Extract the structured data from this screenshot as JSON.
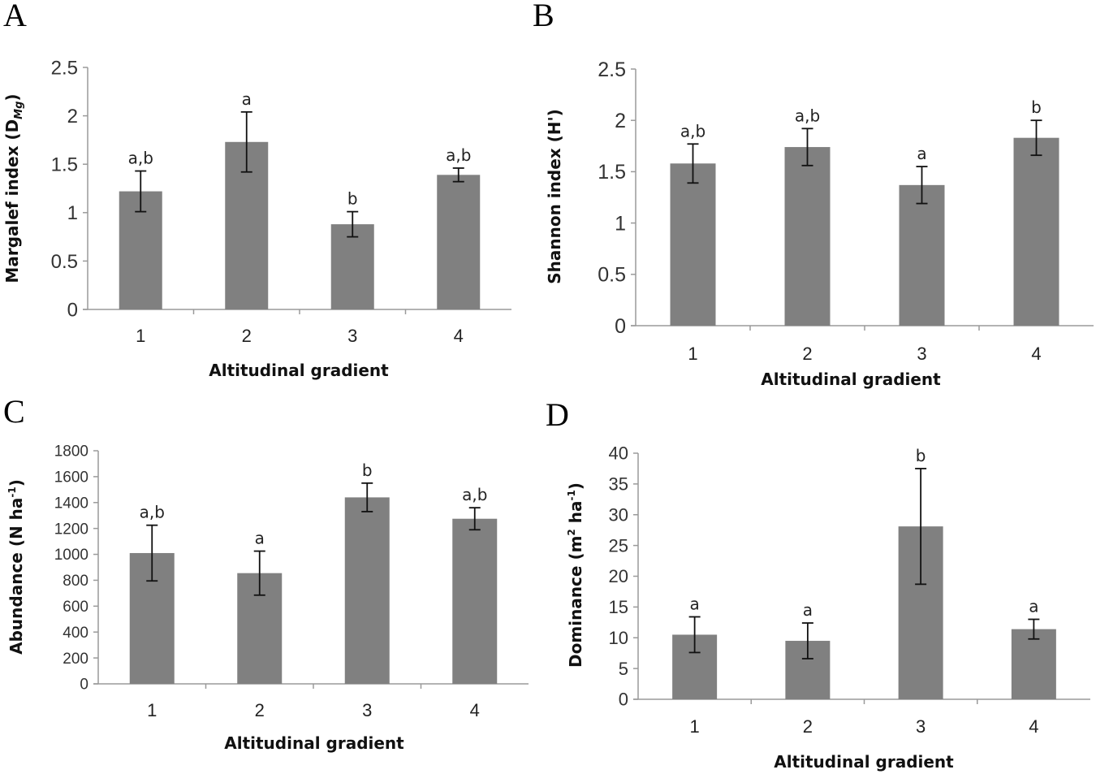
{
  "chart_data": [
    {
      "panel": "A",
      "type": "bar",
      "xlabel": "Altitudinal gradient",
      "ylabel": "Margalef index (D",
      "ylabel_sub": "Mg",
      "ylabel_end": ")",
      "categories": [
        "1",
        "2",
        "3",
        "4"
      ],
      "values": [
        1.22,
        1.73,
        0.88,
        1.39
      ],
      "errors": [
        0.21,
        0.31,
        0.13,
        0.07
      ],
      "significance": [
        "a,b",
        "a",
        "b",
        "a,b"
      ],
      "ylim": [
        0,
        2.5
      ],
      "yticks": [
        "0",
        "0.5",
        "1",
        "1.5",
        "2",
        "2.5"
      ]
    },
    {
      "panel": "B",
      "type": "bar",
      "xlabel": "Altitudinal gradient",
      "ylabel": "Shannon index (H')",
      "categories": [
        "1",
        "2",
        "3",
        "4"
      ],
      "values": [
        1.58,
        1.74,
        1.37,
        1.83
      ],
      "errors": [
        0.19,
        0.18,
        0.18,
        0.17
      ],
      "significance": [
        "a,b",
        "a,b",
        "a",
        "b"
      ],
      "ylim": [
        0,
        2.5
      ],
      "yticks": [
        "0",
        "0.5",
        "1",
        "1.5",
        "2",
        "2.5"
      ]
    },
    {
      "panel": "C",
      "type": "bar",
      "xlabel": "Altitudinal gradient",
      "ylabel": "Abundance (N ha",
      "ylabel_sup": "-1",
      "ylabel_end": ")",
      "categories": [
        "1",
        "2",
        "3",
        "4"
      ],
      "values": [
        1010,
        855,
        1440,
        1275
      ],
      "errors": [
        215,
        170,
        110,
        85
      ],
      "significance": [
        "a,b",
        "a",
        "b",
        "a,b"
      ],
      "ylim": [
        0,
        1800
      ],
      "yticks": [
        "0",
        "200",
        "400",
        "600",
        "800",
        "1000",
        "1200",
        "1400",
        "1600",
        "1800"
      ]
    },
    {
      "panel": "D",
      "type": "bar",
      "xlabel": "Altitudinal gradient",
      "ylabel": "Dominance (m",
      "ylabel_sup1": "2",
      "ylabel_mid": " ha",
      "ylabel_sup2": "-1",
      "ylabel_end": ")",
      "categories": [
        "1",
        "2",
        "3",
        "4"
      ],
      "values": [
        10.5,
        9.5,
        28.1,
        11.4
      ],
      "errors": [
        2.9,
        2.9,
        9.4,
        1.6
      ],
      "significance": [
        "a",
        "a",
        "b",
        "a"
      ],
      "ylim": [
        0,
        40
      ],
      "yticks": [
        "0",
        "5",
        "10",
        "15",
        "20",
        "25",
        "30",
        "35",
        "40"
      ]
    }
  ]
}
